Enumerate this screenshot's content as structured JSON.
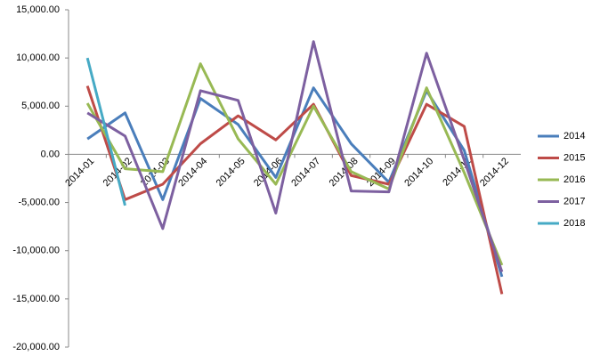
{
  "chart_data": {
    "type": "line",
    "categories": [
      "2014-01",
      "2014-02",
      "2014-03",
      "2014-04",
      "2014-05",
      "2014-06",
      "2014-07",
      "2014-08",
      "2014-09",
      "2014-10",
      "2014-11",
      "2014-12"
    ],
    "series": [
      {
        "name": "2014",
        "color": "#4a7ebb",
        "values": [
          1600,
          4300,
          -4700,
          5800,
          3100,
          -2400,
          6900,
          1100,
          -2900,
          6600,
          400,
          -12700
        ]
      },
      {
        "name": "2015",
        "color": "#be4b48",
        "values": [
          7100,
          -4700,
          -3100,
          1100,
          4000,
          1500,
          5200,
          -2200,
          -3100,
          5200,
          2900,
          -14500
        ]
      },
      {
        "name": "2016",
        "color": "#98b954",
        "values": [
          5300,
          -1500,
          -1800,
          9400,
          1600,
          -3100,
          5000,
          -1800,
          -3600,
          6900,
          -1900,
          -11500
        ]
      },
      {
        "name": "2017",
        "color": "#7d60a0",
        "values": [
          4300,
          1900,
          -7700,
          6600,
          5600,
          -6100,
          11700,
          -3800,
          -3900,
          10500,
          -600,
          -12200
        ]
      },
      {
        "name": "2018",
        "color": "#46aac5",
        "values": [
          10000,
          -5300,
          null,
          null,
          null,
          null,
          null,
          null,
          null,
          null,
          null,
          null
        ]
      }
    ],
    "ylim": [
      -20000,
      15000
    ],
    "yticks": [
      {
        "value": -20000,
        "label": "-20,000.00"
      },
      {
        "value": -15000,
        "label": "-15,000.00"
      },
      {
        "value": -10000,
        "label": "-10,000.00"
      },
      {
        "value": -5000,
        "label": "-5,000.00"
      },
      {
        "value": 0,
        "label": "0.00"
      },
      {
        "value": 5000,
        "label": "5,000.00"
      },
      {
        "value": 10000,
        "label": "10,000.00"
      },
      {
        "value": 15000,
        "label": "15,000.00"
      }
    ],
    "grid": false,
    "legend": "right"
  }
}
